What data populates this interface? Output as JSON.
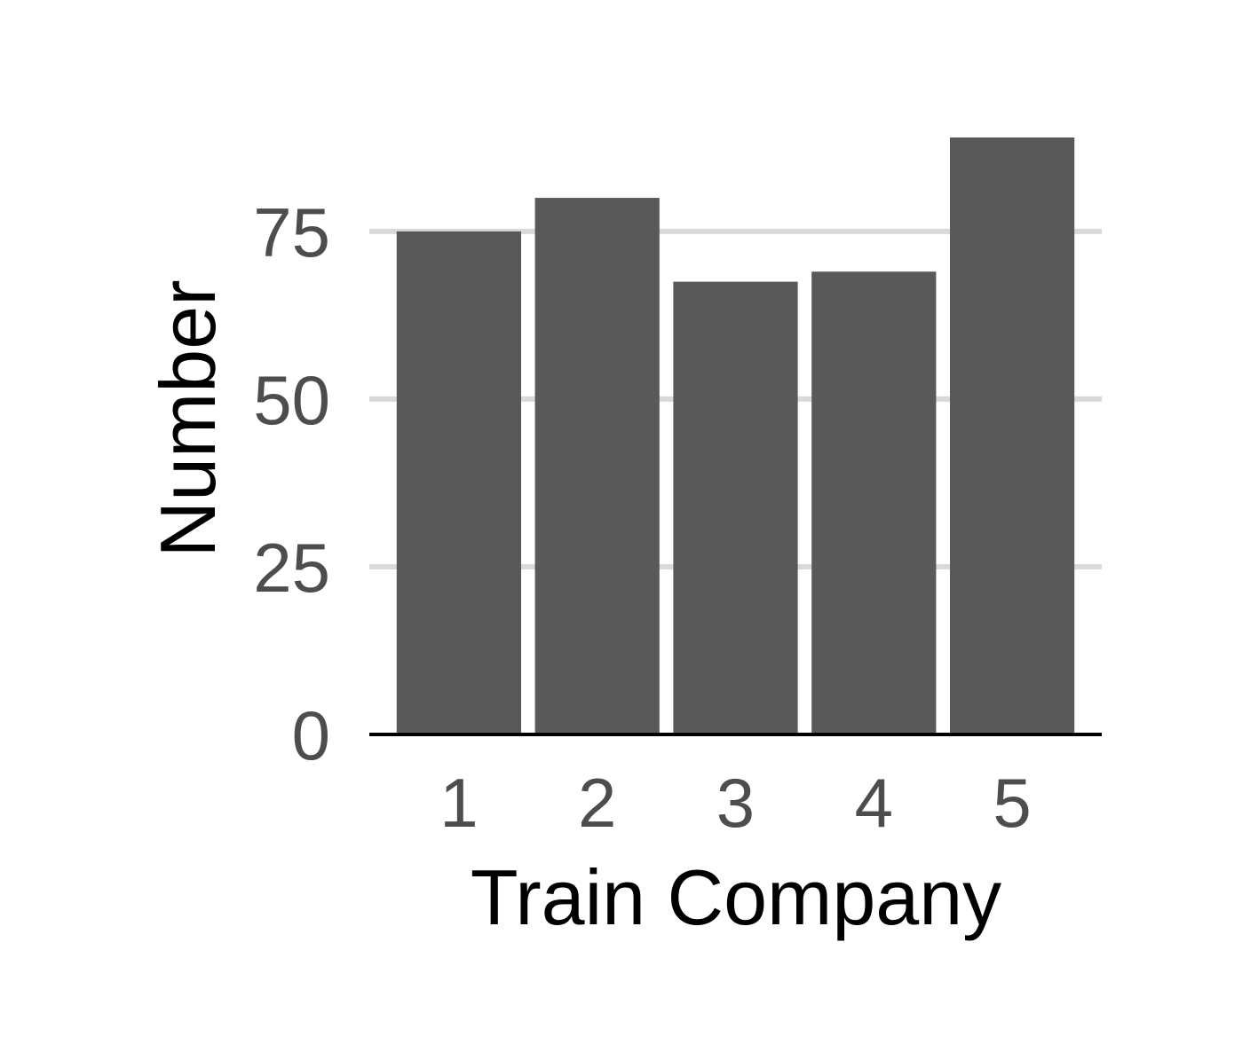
{
  "chart_data": {
    "type": "bar",
    "categories": [
      "1",
      "2",
      "3",
      "4",
      "5"
    ],
    "values": [
      75,
      80,
      67.5,
      69,
      89
    ],
    "title": "",
    "xlabel": "Train Company",
    "ylabel": "Number",
    "ylim": [
      0,
      89
    ],
    "yticks": [
      "0",
      "25",
      "50",
      "75"
    ],
    "grid": "horizontal",
    "colors": {
      "bar": "#595959",
      "grid": "#d9d9d9",
      "axis": "#000000",
      "tick_text": "#4d4d4d"
    }
  }
}
